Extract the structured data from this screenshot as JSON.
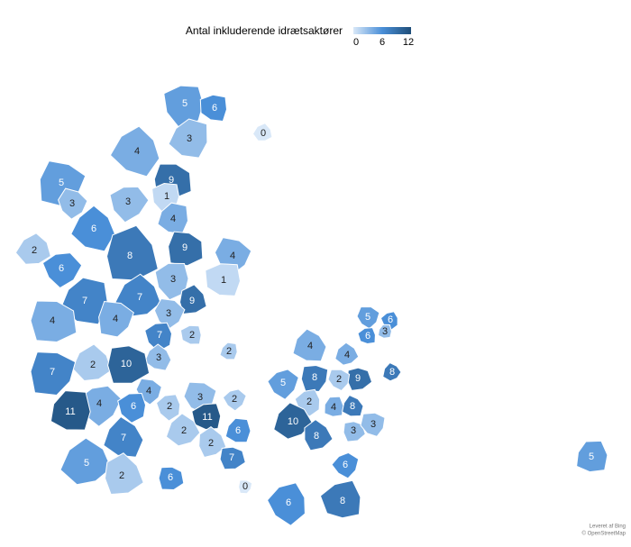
{
  "chart_data": {
    "type": "choropleth",
    "title": "Antal inkluderende idrætsaktører",
    "values": [
      5,
      6,
      3,
      4,
      0,
      9,
      5,
      3,
      3,
      1,
      4,
      6,
      2,
      8,
      9,
      4,
      6,
      3,
      1,
      7,
      7,
      9,
      4,
      4,
      3,
      7,
      2,
      2,
      3,
      2,
      10,
      7,
      4,
      4,
      6,
      11,
      7,
      5,
      2,
      6,
      3,
      2,
      2,
      11,
      6,
      2,
      2,
      7,
      0,
      5,
      6,
      6,
      3,
      4,
      4,
      9,
      8,
      2,
      5,
      2,
      4,
      8,
      10,
      8,
      3,
      3,
      6,
      6,
      8,
      5,
      8
    ],
    "colorlim": [
      0,
      12
    ],
    "legend_ticks": [
      0,
      6,
      12
    ],
    "colorscale": [
      "#d9e8f8",
      "#4a8fd8",
      "#1f4e79"
    ],
    "attribution": [
      "Leveret af Bing",
      "© OpenStreetMap"
    ]
  }
}
